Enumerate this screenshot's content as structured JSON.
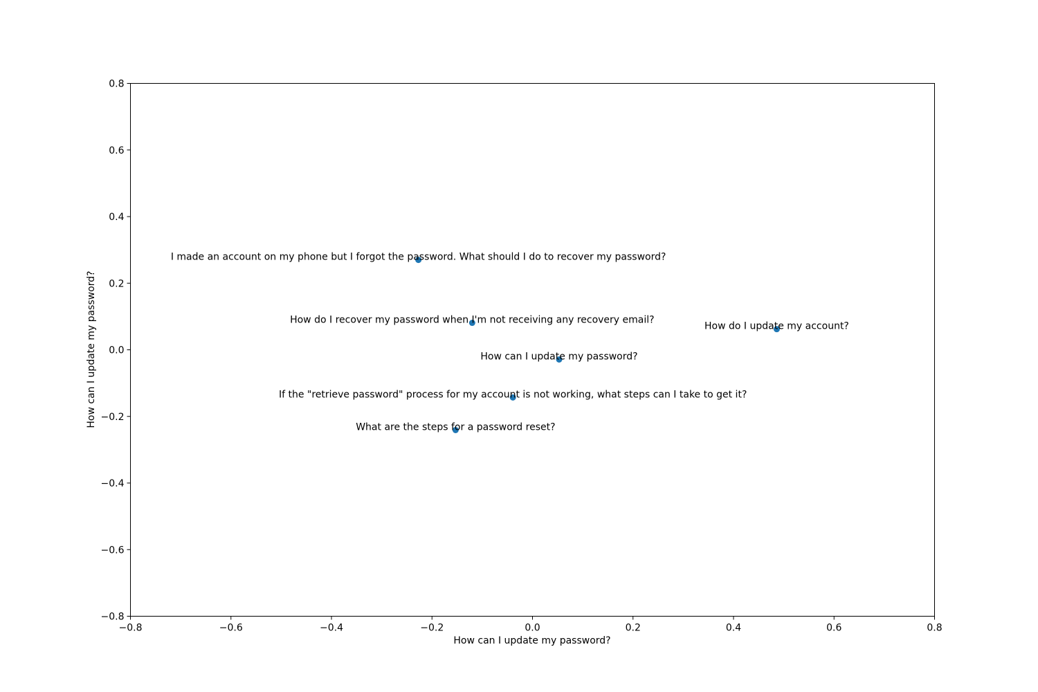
{
  "chart_data": {
    "type": "scatter",
    "title": "",
    "xlabel": "How can I update my password?",
    "ylabel": "How can I update my password?",
    "xlim": [
      -0.8,
      0.8
    ],
    "ylim": [
      -0.8,
      0.8
    ],
    "xticks": [
      -0.8,
      -0.6,
      -0.4,
      -0.2,
      0.0,
      0.2,
      0.4,
      0.6,
      0.8
    ],
    "yticks": [
      -0.8,
      -0.6,
      -0.4,
      -0.2,
      0.0,
      0.2,
      0.4,
      0.6,
      0.8
    ],
    "xtick_labels": [
      "−0.8",
      "−0.6",
      "−0.4",
      "−0.2",
      "0.0",
      "0.2",
      "0.4",
      "0.6",
      "0.8"
    ],
    "ytick_labels": [
      "−0.8",
      "−0.6",
      "−0.4",
      "−0.2",
      "0.0",
      "0.2",
      "0.4",
      "0.6",
      "0.8"
    ],
    "grid": false,
    "marker_color": "#1f77b4",
    "points": [
      {
        "x": -0.227,
        "y": 0.27,
        "label": "I made an account on my phone but I forgot the password. What should I do to recover my password?"
      },
      {
        "x": -0.12,
        "y": 0.081,
        "label": "How do I recover my password when I'm not receiving any recovery email?"
      },
      {
        "x": 0.486,
        "y": 0.062,
        "label": "How do I update my account?"
      },
      {
        "x": 0.053,
        "y": -0.029,
        "label": "How can I update my password?"
      },
      {
        "x": -0.039,
        "y": -0.143,
        "label": "If the \"retrieve password\" process for my account is not working, what steps can I take to get it?"
      },
      {
        "x": -0.153,
        "y": -0.241,
        "label": "What are the steps for a password reset?"
      }
    ]
  }
}
